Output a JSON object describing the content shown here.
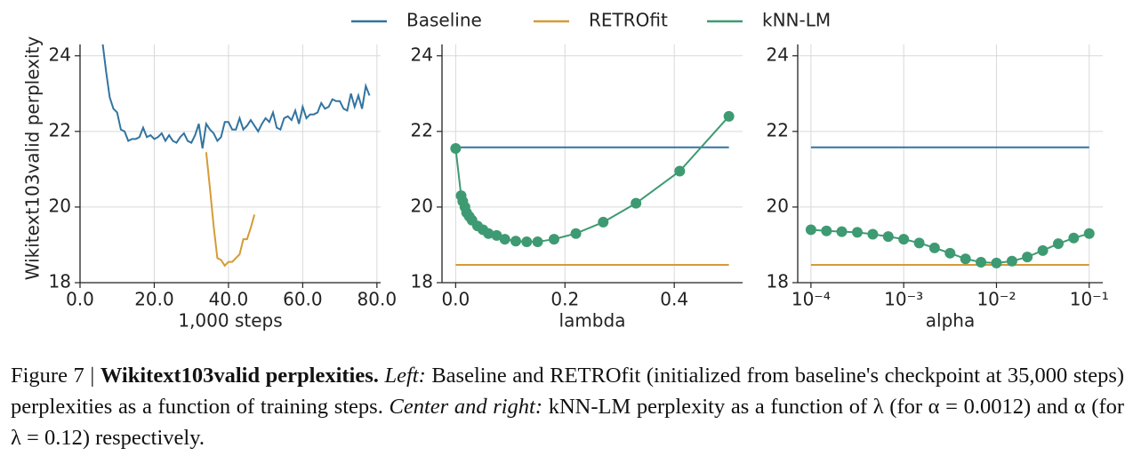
{
  "chart_data": [
    {
      "type": "line",
      "xlabel": "1,000 steps",
      "ylabel": "Wikitext103valid perplexity",
      "xlim": [
        0,
        81
      ],
      "xticks": [
        0,
        20,
        40,
        60,
        80
      ],
      "ylim": [
        18,
        24.3
      ],
      "yticks": [
        18,
        20,
        22,
        24
      ],
      "grid": true,
      "series": [
        {
          "name": "Baseline",
          "color": "#3274a1",
          "x": [
            6,
            7,
            8,
            9,
            10,
            11,
            12,
            13,
            14,
            15,
            16,
            17,
            18,
            19,
            20,
            21,
            22,
            23,
            24,
            25,
            26,
            27,
            28,
            29,
            30,
            31,
            32,
            33,
            34,
            35,
            36,
            37,
            38,
            39,
            40,
            41,
            42,
            43,
            44,
            45,
            46,
            47,
            48,
            49,
            50,
            51,
            52,
            53,
            54,
            55,
            56,
            57,
            58,
            59,
            60,
            61,
            62,
            63,
            64,
            65,
            66,
            67,
            68,
            69,
            70,
            71,
            72,
            73,
            74,
            75,
            76,
            77,
            78
          ],
          "values": [
            24.4,
            23.6,
            22.9,
            22.6,
            22.5,
            22.05,
            22.0,
            21.75,
            21.8,
            21.8,
            21.85,
            22.1,
            21.85,
            21.9,
            21.8,
            21.85,
            21.95,
            21.75,
            21.9,
            21.75,
            21.7,
            21.85,
            21.95,
            21.75,
            21.7,
            21.9,
            22.2,
            21.55,
            22.2,
            22.05,
            21.95,
            21.75,
            21.85,
            22.25,
            22.25,
            22.05,
            22.05,
            22.35,
            22.05,
            22.15,
            22.3,
            22.15,
            22.0,
            22.2,
            22.35,
            22.25,
            22.5,
            22.1,
            22.05,
            22.35,
            22.4,
            22.3,
            22.55,
            22.2,
            22.65,
            22.35,
            22.45,
            22.45,
            22.5,
            22.75,
            22.6,
            22.65,
            22.85,
            22.8,
            22.8,
            22.6,
            22.55,
            23.0,
            22.65,
            22.95,
            22.6,
            23.2,
            22.95
          ]
        },
        {
          "name": "RETROfit",
          "color": "#d69b35",
          "x": [
            34,
            35,
            36,
            37,
            38,
            39,
            40,
            41,
            42,
            43,
            44,
            45,
            46,
            47
          ],
          "values": [
            21.45,
            20.5,
            19.5,
            18.65,
            18.6,
            18.45,
            18.55,
            18.55,
            18.65,
            18.75,
            19.15,
            19.15,
            19.45,
            19.8
          ]
        }
      ]
    },
    {
      "type": "line",
      "xlabel": "lambda",
      "xlim": [
        -0.025,
        0.525
      ],
      "xticks": [
        0.0,
        0.2,
        0.4
      ],
      "ylim": [
        18,
        24.3
      ],
      "yticks": [
        18,
        20,
        22,
        24
      ],
      "grid": true,
      "series": [
        {
          "name": "Baseline",
          "color": "#3274a1",
          "x": [
            0,
            0.5
          ],
          "values": [
            21.58,
            21.58
          ]
        },
        {
          "name": "RETROfit",
          "color": "#d69b35",
          "x": [
            0,
            0.5
          ],
          "values": [
            18.47,
            18.47
          ]
        },
        {
          "name": "kNN-LM",
          "color": "#3e9a72",
          "marker": true,
          "x": [
            0,
            0.01,
            0.013,
            0.017,
            0.02,
            0.025,
            0.03,
            0.04,
            0.05,
            0.06,
            0.075,
            0.09,
            0.11,
            0.13,
            0.15,
            0.18,
            0.22,
            0.27,
            0.33,
            0.41,
            0.5
          ],
          "values": [
            21.55,
            20.3,
            20.15,
            20.0,
            19.85,
            19.75,
            19.65,
            19.5,
            19.4,
            19.3,
            19.25,
            19.15,
            19.1,
            19.08,
            19.08,
            19.15,
            19.3,
            19.6,
            20.1,
            20.95,
            22.4
          ]
        }
      ]
    },
    {
      "type": "line",
      "xlabel": "alpha",
      "xscale": "log",
      "xlim": [
        7.2e-05,
        0.14
      ],
      "xticks": [
        {
          "value": 0.0001,
          "label": "10⁻⁴"
        },
        {
          "value": 0.001,
          "label": "10⁻³"
        },
        {
          "value": 0.01,
          "label": "10⁻²"
        },
        {
          "value": 0.1,
          "label": "10⁻¹"
        }
      ],
      "ylim": [
        18,
        24.3
      ],
      "yticks": [
        18,
        20,
        22,
        24
      ],
      "grid": true,
      "series": [
        {
          "name": "Baseline",
          "color": "#3274a1",
          "x": [
            0.0001,
            0.1
          ],
          "values": [
            21.58,
            21.58
          ]
        },
        {
          "name": "RETROfit",
          "color": "#d69b35",
          "x": [
            0.0001,
            0.1
          ],
          "values": [
            18.47,
            18.47
          ]
        },
        {
          "name": "kNN-LM",
          "color": "#3e9a72",
          "marker": true,
          "x": [
            0.0001,
            0.000147,
            0.000215,
            0.000316,
            0.000464,
            0.000681,
            0.001,
            0.00147,
            0.00215,
            0.00316,
            0.00464,
            0.00681,
            0.01,
            0.0147,
            0.0215,
            0.0316,
            0.0464,
            0.0681,
            0.1
          ],
          "values": [
            19.4,
            19.37,
            19.35,
            19.33,
            19.28,
            19.22,
            19.15,
            19.05,
            18.92,
            18.78,
            18.63,
            18.54,
            18.52,
            18.57,
            18.68,
            18.85,
            19.03,
            19.18,
            19.3
          ]
        }
      ]
    }
  ],
  "caption": {
    "label": "Figure 7 |",
    "title": "Wikitext103valid perplexities.",
    "left_label": "Left:",
    "text1": "Baseline and RETROfit (initialized from baseline's checkpoint at 35,000 steps) perplexities as a function of training steps.",
    "right_label": "Center and right:",
    "text2": "kNN-LM perplexity as a function of λ (for α = 0.0012) and α (for λ = 0.12) respectively."
  }
}
